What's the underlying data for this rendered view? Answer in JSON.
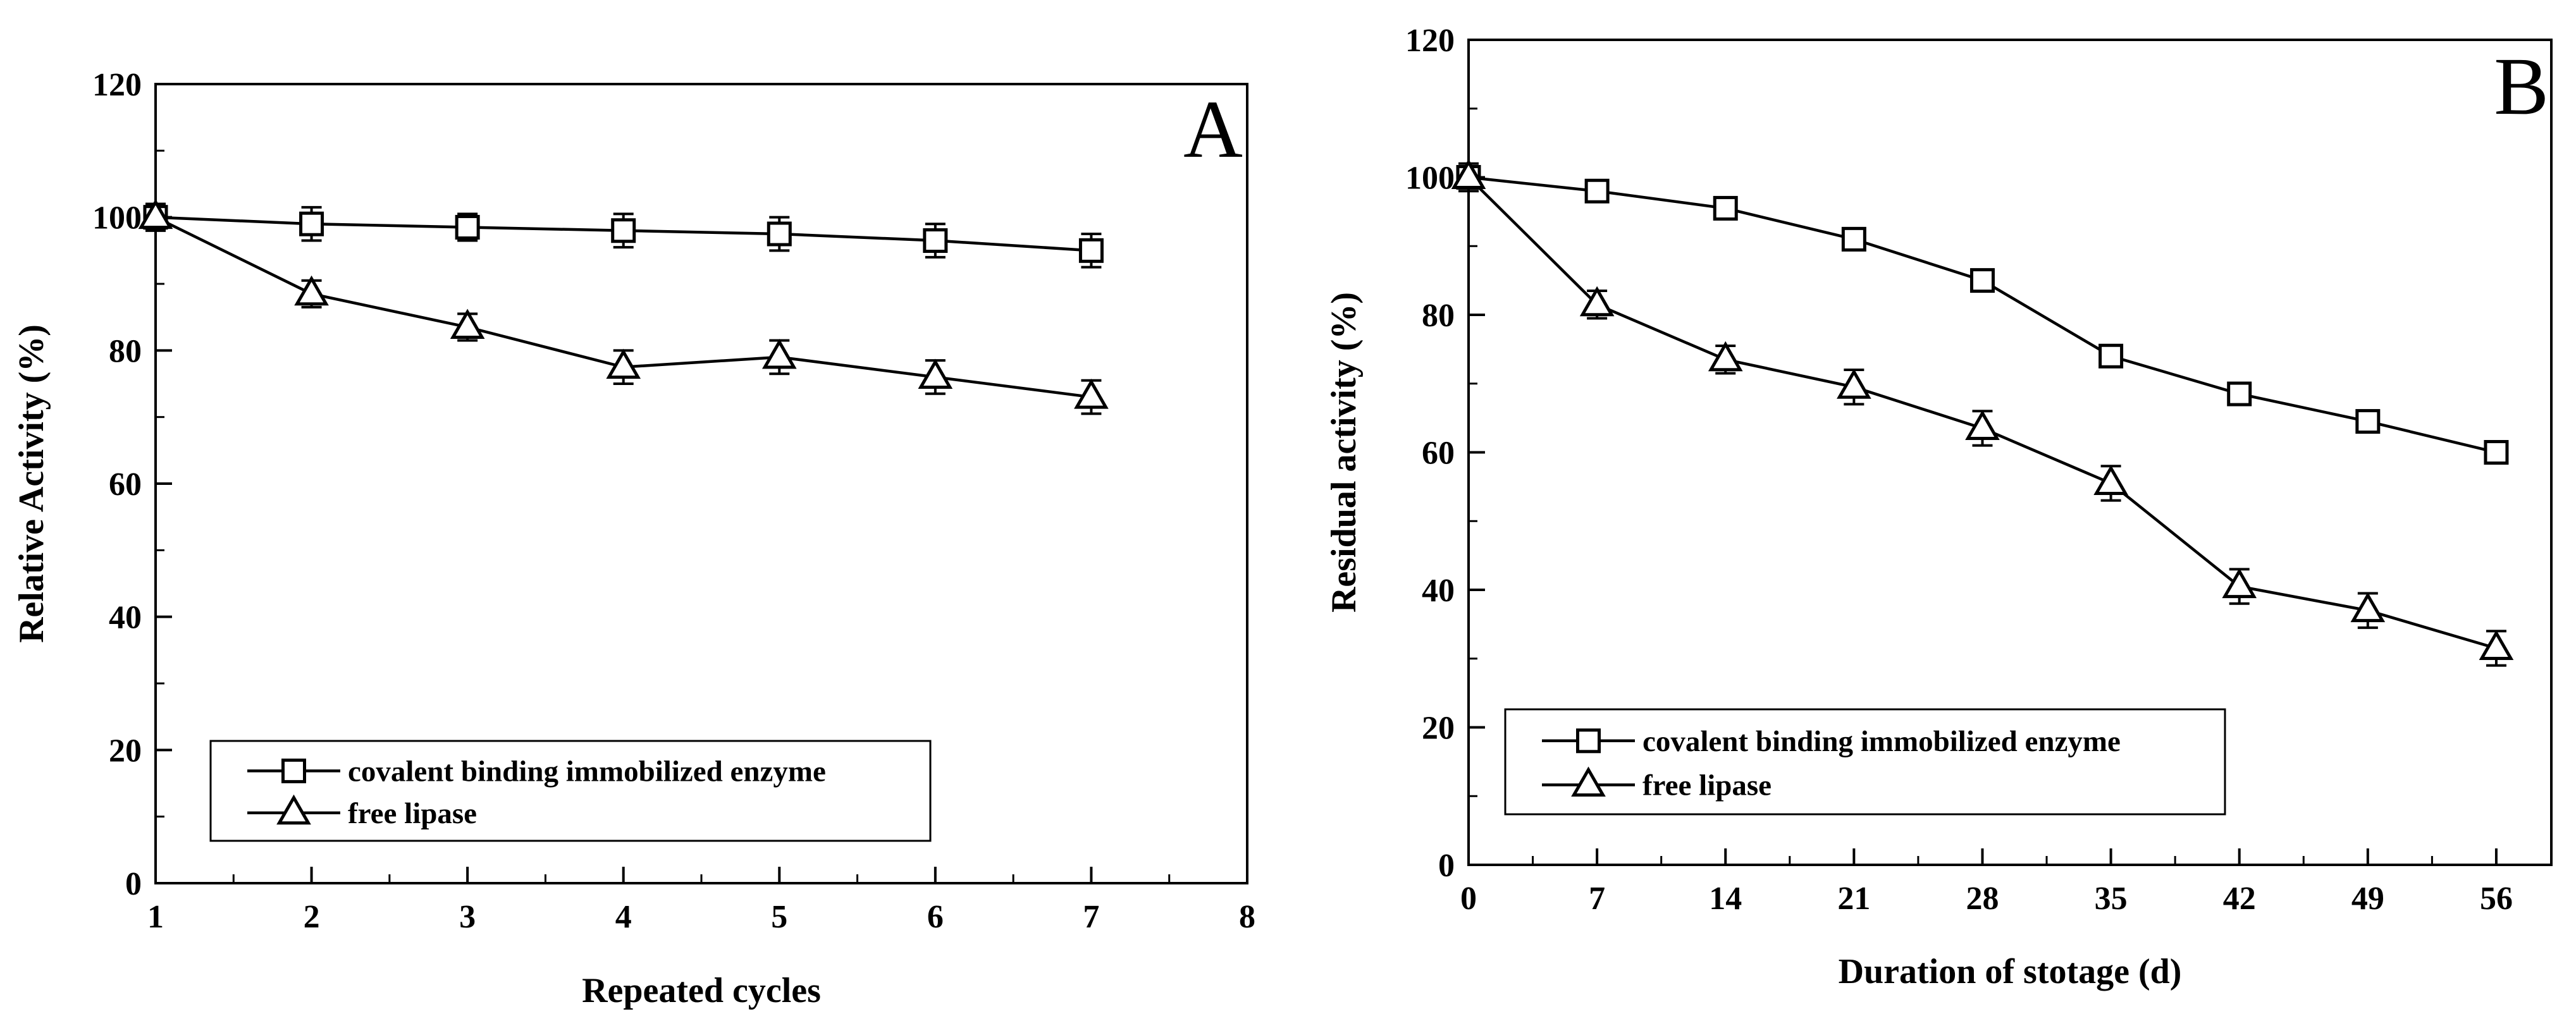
{
  "chart_data": [
    {
      "panel": "A",
      "type": "line",
      "title": "",
      "panel_label": "A",
      "xlabel": "Repeated cycles",
      "ylabel": "Relative Activity (%)",
      "xlim": [
        1,
        8
      ],
      "ylim": [
        0,
        120
      ],
      "x_ticks": [
        1,
        2,
        3,
        4,
        5,
        6,
        7,
        8
      ],
      "y_ticks": [
        0,
        20,
        40,
        60,
        80,
        100,
        120
      ],
      "legend": {
        "position": "bottom-left"
      },
      "series": [
        {
          "name": "covalent binding immobilized enzyme",
          "marker": "square",
          "x": [
            1,
            2,
            3,
            4,
            5,
            6,
            7
          ],
          "values": [
            100,
            99,
            98.5,
            98,
            97.5,
            96.5,
            95
          ],
          "errors": [
            2,
            2.5,
            2,
            2.5,
            2.5,
            2.5,
            2.5
          ]
        },
        {
          "name": "free lipase",
          "marker": "triangle",
          "x": [
            1,
            2,
            3,
            4,
            5,
            6,
            7
          ],
          "values": [
            100,
            88.5,
            83.5,
            77.5,
            79,
            76,
            73
          ],
          "errors": [
            2,
            2,
            2,
            2.5,
            2.5,
            2.5,
            2.5
          ]
        }
      ]
    },
    {
      "panel": "B",
      "type": "line",
      "title": "",
      "panel_label": "B",
      "xlabel": "Duration of stotage (d)",
      "ylabel": "Residual activity (%)",
      "xlim": [
        0,
        59
      ],
      "ylim": [
        0,
        120
      ],
      "x_ticks": [
        0,
        7,
        14,
        21,
        28,
        35,
        42,
        49,
        56
      ],
      "y_ticks": [
        0,
        20,
        40,
        60,
        80,
        100,
        120
      ],
      "legend": {
        "position": "bottom-left"
      },
      "series": [
        {
          "name": "covalent binding immobilized enzyme",
          "marker": "square",
          "x": [
            0,
            7,
            14,
            21,
            28,
            35,
            42,
            49,
            56
          ],
          "values": [
            100,
            98,
            95.5,
            91,
            85,
            74,
            68.5,
            64.5,
            60
          ],
          "errors": [
            1.5,
            1.5,
            1.5,
            1.5,
            1.5,
            1.5,
            1.5,
            1.5,
            1.5
          ]
        },
        {
          "name": "free lipase",
          "marker": "triangle",
          "x": [
            0,
            7,
            14,
            21,
            28,
            35,
            42,
            49,
            56
          ],
          "values": [
            100,
            81.5,
            73.5,
            69.5,
            63.5,
            55.5,
            40.5,
            37,
            31.5
          ],
          "errors": [
            2,
            2,
            2,
            2.5,
            2.5,
            2.5,
            2.5,
            2.5,
            2.5
          ]
        }
      ]
    }
  ]
}
